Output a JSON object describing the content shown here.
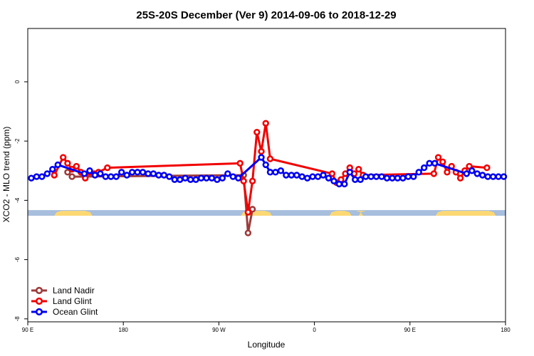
{
  "chart_data": {
    "type": "line",
    "title": "25S-20S December (Ver 9)   2014-09-06 to 2018-12-29",
    "xlabel": "Longitude",
    "ylabel": "XCO2 - MLO trend (ppm)",
    "xlim": [
      0,
      540
    ],
    "ylim": [
      -8.1,
      1.8
    ],
    "x_ticks": [
      {
        "value": 0,
        "label": "90 E"
      },
      {
        "value": 108,
        "label": "180"
      },
      {
        "value": 216,
        "label": "90 W"
      },
      {
        "value": 324,
        "label": "0"
      },
      {
        "value": 432,
        "label": "90 E"
      },
      {
        "value": 540,
        "label": "180"
      }
    ],
    "y_ticks": [
      {
        "value": 0,
        "label": "0"
      },
      {
        "value": -2,
        "label": "-2"
      },
      {
        "value": -4,
        "label": "-4"
      },
      {
        "value": -6,
        "label": "-6"
      },
      {
        "value": -8,
        "label": "-8"
      }
    ],
    "legend_position": "bottom-left",
    "land_strip": {
      "y_range": [
        -4.33,
        -4.52
      ],
      "ocean_color": "#a7bedd",
      "land_color": "#fcd874",
      "land_segments": [
        [
          30,
          73
        ],
        [
          241,
          276
        ],
        [
          341,
          366
        ],
        [
          374,
          379
        ],
        [
          461,
          529
        ]
      ]
    },
    "series": [
      {
        "name": "Land Nadir",
        "color": "#9e3b3b",
        "x": [
          45,
          50,
          244,
          249,
          254
        ],
        "y": [
          -3.05,
          -3.2,
          -3.15,
          -5.1,
          -4.3
        ]
      },
      {
        "name": "Land Glint",
        "color": "#f20000",
        "x": [
          30,
          40,
          45,
          50,
          55,
          60,
          65,
          70,
          75,
          80,
          90,
          240,
          244,
          249,
          254,
          259,
          264,
          269,
          274,
          344,
          349,
          354,
          359,
          364,
          369,
          374,
          379,
          459,
          464,
          469,
          474,
          479,
          484,
          489,
          494,
          499,
          519
        ],
        "y": [
          -3.15,
          -2.55,
          -2.75,
          -2.95,
          -2.85,
          -3.05,
          -3.25,
          -3.05,
          -3.1,
          -3.05,
          -2.9,
          -2.75,
          -3.35,
          -4.4,
          -3.35,
          -1.7,
          -2.35,
          -1.4,
          -2.6,
          -3.1,
          -3.4,
          -3.3,
          -3.1,
          -2.9,
          -3.1,
          -2.95,
          -3.15,
          -3.1,
          -2.55,
          -2.7,
          -3.05,
          -2.85,
          -3.05,
          -3.25,
          -3.0,
          -2.85,
          -2.9
        ]
      },
      {
        "name": "Ocean Glint",
        "color": "#0000f0",
        "x": [
          4,
          10,
          16,
          22,
          28,
          34,
          64,
          70,
          76,
          82,
          88,
          94,
          100,
          106,
          112,
          118,
          124,
          130,
          136,
          142,
          148,
          154,
          160,
          166,
          172,
          178,
          184,
          190,
          196,
          202,
          208,
          214,
          220,
          226,
          232,
          238,
          264,
          269,
          274,
          280,
          286,
          292,
          298,
          304,
          310,
          316,
          322,
          328,
          334,
          340,
          346,
          352,
          358,
          364,
          370,
          376,
          382,
          388,
          394,
          400,
          406,
          412,
          418,
          424,
          430,
          436,
          442,
          448,
          454,
          460,
          496,
          502,
          508,
          514,
          520,
          526,
          532,
          538
        ],
        "y": [
          -3.25,
          -3.2,
          -3.2,
          -3.1,
          -2.95,
          -2.8,
          -3.1,
          -3.0,
          -3.15,
          -3.1,
          -3.2,
          -3.2,
          -3.2,
          -3.05,
          -3.15,
          -3.05,
          -3.05,
          -3.05,
          -3.1,
          -3.1,
          -3.15,
          -3.15,
          -3.2,
          -3.3,
          -3.3,
          -3.25,
          -3.3,
          -3.3,
          -3.25,
          -3.25,
          -3.25,
          -3.3,
          -3.25,
          -3.1,
          -3.2,
          -3.25,
          -2.55,
          -2.8,
          -3.05,
          -3.05,
          -3.0,
          -3.15,
          -3.15,
          -3.15,
          -3.2,
          -3.25,
          -3.2,
          -3.2,
          -3.15,
          -3.25,
          -3.35,
          -3.45,
          -3.45,
          -3.05,
          -3.3,
          -3.3,
          -3.2,
          -3.2,
          -3.2,
          -3.2,
          -3.25,
          -3.25,
          -3.25,
          -3.25,
          -3.2,
          -3.2,
          -3.05,
          -2.9,
          -2.75,
          -2.75,
          -3.1,
          -3.0,
          -3.1,
          -3.15,
          -3.2,
          -3.2,
          -3.2,
          -3.2
        ]
      }
    ]
  }
}
